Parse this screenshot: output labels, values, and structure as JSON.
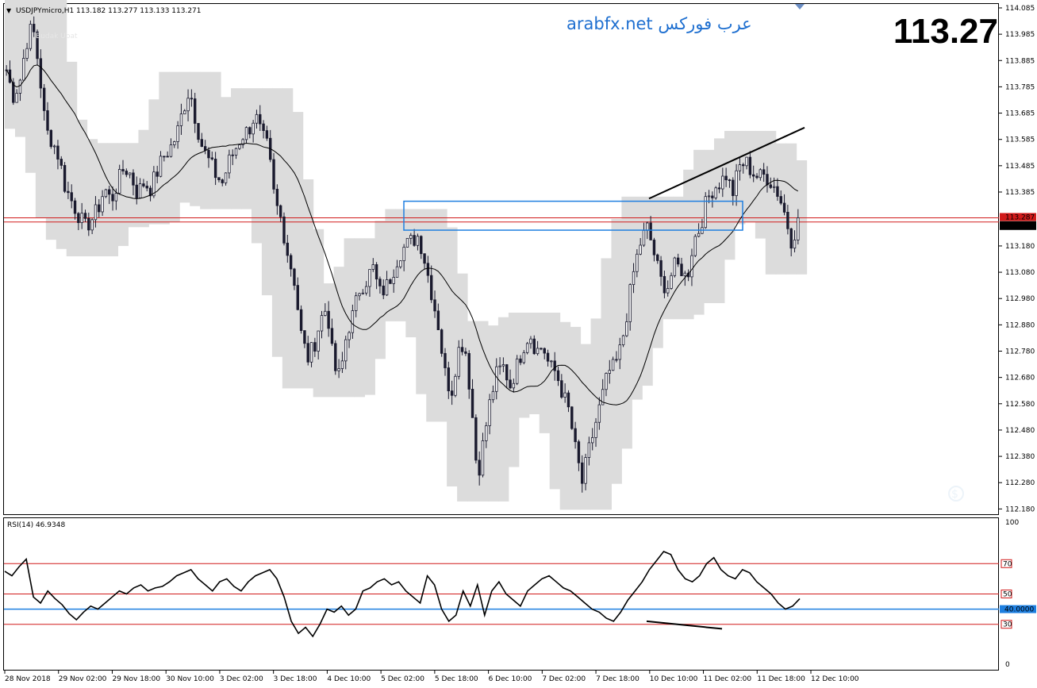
{
  "header": {
    "symbol_info": "USDJPYmicro,H1  113.182 113.277 113.133 113.271",
    "watermark": "Budak Ubat",
    "site": "arabfx.net عرب فوركس",
    "big_price": "113.27"
  },
  "price_axis": {
    "ticks": [
      "114.085",
      "113.985",
      "113.885",
      "113.785",
      "113.685",
      "113.585",
      "113.485",
      "113.385",
      "113.271",
      "113.180",
      "113.080",
      "112.980",
      "112.880",
      "112.780",
      "112.680",
      "112.580",
      "112.480",
      "112.380",
      "112.280",
      "112.180"
    ],
    "current_price_label": "113.271",
    "hline_label": "113.287",
    "ylim": [
      112.16,
      114.1
    ]
  },
  "rsi": {
    "title": "RSI(14) 46.9348",
    "levels": [
      "100",
      "70",
      "50",
      "40.0000",
      "30",
      "0"
    ],
    "ylim": [
      0,
      100
    ]
  },
  "time_axis": {
    "labels": [
      "28 Nov 2018",
      "29 Nov 02:00",
      "29 Nov 18:00",
      "30 Nov 10:00",
      "3 Dec 02:00",
      "3 Dec 18:00",
      "4 Dec 10:00",
      "5 Dec 02:00",
      "5 Dec 18:00",
      "6 Dec 10:00",
      "7 Dec 02:00",
      "7 Dec 18:00",
      "10 Dec 10:00",
      "11 Dec 02:00",
      "11 Dec 18:00",
      "12 Dec 10:00"
    ]
  },
  "colors": {
    "candle": "#1a1a2e",
    "envelope": "#dcdcdc",
    "hline": "#d11a1a",
    "box": "#1e7fe0",
    "rsi_40": "#1e7fe0",
    "price_tag_bg": "#000000"
  },
  "chart_data": {
    "type": "candlestick",
    "title": "USDJPYmicro,H1",
    "x_labels": [
      "28 Nov 2018",
      "29 Nov 02:00",
      "29 Nov 18:00",
      "30 Nov 10:00",
      "3 Dec 02:00",
      "3 Dec 18:00",
      "4 Dec 10:00",
      "5 Dec 02:00",
      "5 Dec 18:00",
      "6 Dec 10:00",
      "7 Dec 02:00",
      "7 Dec 18:00",
      "10 Dec 10:00",
      "11 Dec 02:00",
      "11 Dec 18:00",
      "12 Dec 10:00"
    ],
    "close_path": [
      113.85,
      113.75,
      113.8,
      113.95,
      114.02,
      113.85,
      113.62,
      113.58,
      113.52,
      113.4,
      113.35,
      113.3,
      113.25,
      113.28,
      113.32,
      113.4,
      113.35,
      113.42,
      113.48,
      113.45,
      113.38,
      113.42,
      113.4,
      113.46,
      113.52,
      113.55,
      113.6,
      113.7,
      113.78,
      113.65,
      113.55,
      113.5,
      113.45,
      113.42,
      113.5,
      113.55,
      113.6,
      113.62,
      113.68,
      113.6,
      113.55,
      113.35,
      113.28,
      113.15,
      113.05,
      112.85,
      112.75,
      112.8,
      112.9,
      112.95,
      112.72,
      112.68,
      112.85,
      112.92,
      113.02,
      113.05,
      113.1,
      113.0,
      113.02,
      113.08,
      113.15,
      113.18,
      113.2,
      113.22,
      113.12,
      113.0,
      112.88,
      112.7,
      112.62,
      112.78,
      112.82,
      112.6,
      112.3,
      112.45,
      112.6,
      112.7,
      112.72,
      112.65,
      112.72,
      112.8,
      112.85,
      112.78,
      112.8,
      112.72,
      112.7,
      112.62,
      112.55,
      112.4,
      112.28,
      112.4,
      112.5,
      112.6,
      112.7,
      112.72,
      112.8,
      112.95,
      113.1,
      113.2,
      113.25,
      113.15,
      113.05,
      113.02,
      113.1,
      113.1,
      113.05,
      113.2,
      113.25,
      113.35,
      113.4,
      113.42,
      113.45,
      113.38,
      113.48,
      113.5,
      113.46,
      113.44,
      113.45,
      113.42,
      113.38,
      113.3,
      113.2,
      113.27
    ],
    "ylim": [
      112.16,
      114.1
    ],
    "horizontal_lines": [
      113.287,
      113.271
    ],
    "resistance_box": {
      "top": 113.35,
      "bottom": 113.24
    },
    "trendline": {
      "start": 113.36,
      "end": 113.63
    },
    "rsi_series": [
      65,
      62,
      68,
      73,
      48,
      44,
      52,
      47,
      43,
      37,
      33,
      38,
      42,
      40,
      44,
      48,
      52,
      50,
      54,
      56,
      52,
      54,
      55,
      58,
      62,
      64,
      66,
      60,
      56,
      52,
      58,
      60,
      55,
      52,
      58,
      62,
      64,
      66,
      60,
      48,
      32,
      24,
      28,
      22,
      30,
      40,
      38,
      42,
      36,
      40,
      52,
      54,
      58,
      60,
      56,
      58,
      52,
      48,
      44,
      62,
      56,
      40,
      32,
      36,
      52,
      42,
      56,
      36,
      52,
      58,
      50,
      46,
      42,
      52,
      56,
      60,
      62,
      58,
      54,
      52,
      48,
      44,
      40,
      38,
      34,
      32,
      38,
      46,
      52,
      58,
      66,
      72,
      78,
      76,
      66,
      60,
      58,
      62,
      70,
      74,
      66,
      62,
      60,
      66,
      64,
      58,
      54,
      50,
      44,
      40,
      42,
      46.93
    ],
    "rsi_trendline": {
      "start": 32,
      "end": 27
    },
    "rsi_levels": [
      70,
      50,
      40,
      30
    ]
  }
}
